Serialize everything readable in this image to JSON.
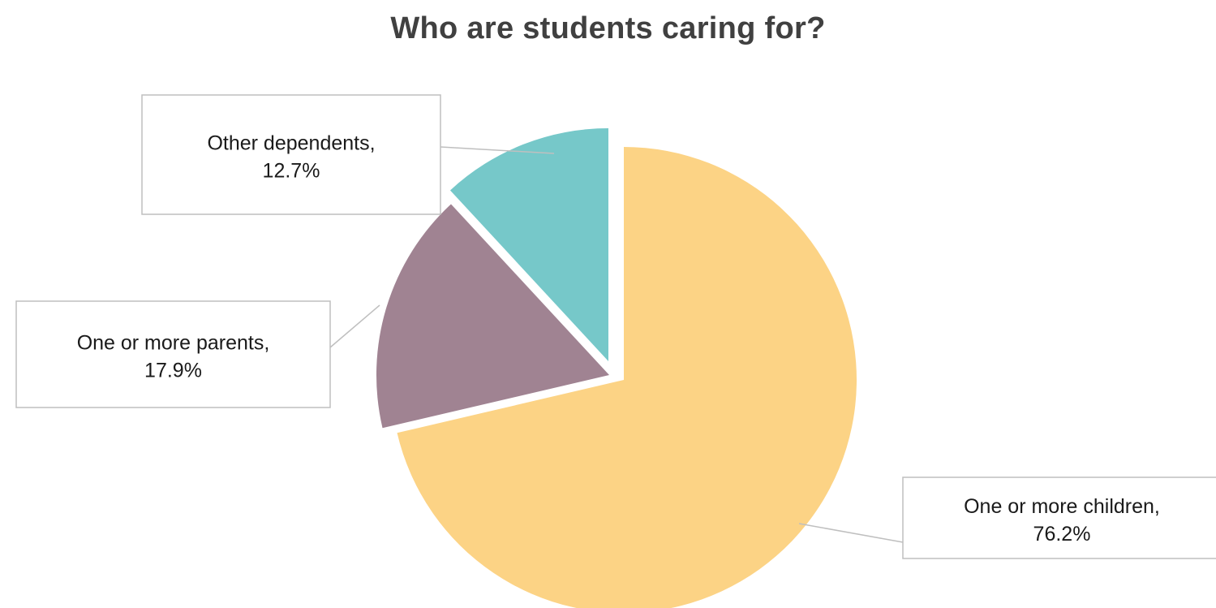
{
  "chart_data": {
    "type": "pie",
    "title": "Who are students caring for?",
    "categories": [
      "One or more children",
      "One or more parents",
      "Other dependents"
    ],
    "values": [
      76.2,
      17.9,
      12.7
    ],
    "unit": "%",
    "colors": [
      "#FCD385",
      "#A08392",
      "#76C8C9"
    ],
    "labels": [
      {
        "category": "One or more children,",
        "value": "76.2%"
      },
      {
        "category": "One or more parents,",
        "value": "17.9%"
      },
      {
        "category": "Other dependents,",
        "value": "12.7%"
      }
    ],
    "legend": "none",
    "exploded": true
  }
}
